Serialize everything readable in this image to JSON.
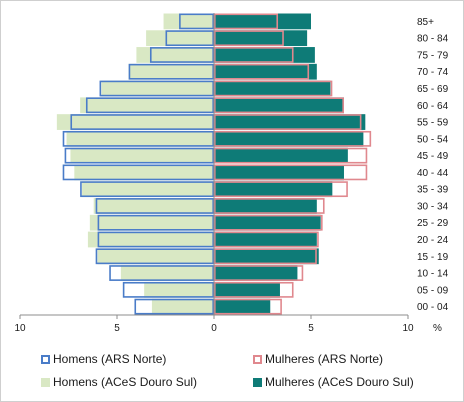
{
  "chart_data": {
    "type": "bar",
    "orientation": "horizontal-population-pyramid",
    "categories": [
      "85+",
      "80 - 84",
      "75 - 79",
      "70 - 74",
      "65 - 69",
      "60 - 64",
      "55 - 59",
      "50 - 54",
      "45 - 49",
      "40 - 44",
      "35 - 39",
      "30 - 34",
      "25 - 29",
      "20 - 24",
      "15 - 19",
      "10 - 14",
      "05 - 09",
      "00 - 04"
    ],
    "series": [
      {
        "name": "Homens (ARS Norte)",
        "side": "left",
        "style": "outline",
        "color": "#4a7cc8",
        "values": [
          1.8,
          2.5,
          3.3,
          4.4,
          5.9,
          6.6,
          7.4,
          7.8,
          7.7,
          7.8,
          6.9,
          6.1,
          6.0,
          6.0,
          6.1,
          5.4,
          4.7,
          4.1
        ]
      },
      {
        "name": "Mulheres (ARS Norte)",
        "side": "right",
        "style": "outline",
        "color": "#e0888e",
        "values": [
          3.3,
          3.6,
          4.1,
          4.9,
          6.1,
          6.7,
          7.6,
          8.1,
          7.9,
          7.9,
          6.9,
          5.7,
          5.6,
          5.4,
          5.3,
          4.6,
          4.1,
          3.5
        ]
      },
      {
        "name": "Homens (ACeS Douro Sul)",
        "side": "left",
        "style": "fill",
        "color": "#d9e8c4",
        "values": [
          2.6,
          3.5,
          4.0,
          4.4,
          5.8,
          6.9,
          8.1,
          7.6,
          7.4,
          7.2,
          6.8,
          6.2,
          6.4,
          6.5,
          6.0,
          4.8,
          3.6,
          3.2
        ]
      },
      {
        "name": "Mulheres (ACeS Douro Sul)",
        "side": "right",
        "style": "fill",
        "color": "#0e7b77",
        "values": [
          5.0,
          4.8,
          5.2,
          5.3,
          6.0,
          6.7,
          7.8,
          7.7,
          6.9,
          6.7,
          6.1,
          5.3,
          5.5,
          5.3,
          5.4,
          4.3,
          3.4,
          2.9
        ]
      }
    ],
    "x_ticks": [
      "10",
      "5",
      "0",
      "5",
      "10"
    ],
    "x_unit": "%",
    "xlim": [
      -10,
      10
    ],
    "grid": false,
    "legend_position": "bottom"
  },
  "legend": {
    "homens_ars": "Homens (ARS Norte)",
    "mulheres_ars": "Mulheres (ARS Norte)",
    "homens_aces": "Homens (ACeS Douro Sul)",
    "mulheres_aces": "Mulheres (ACeS Douro Sul)"
  }
}
